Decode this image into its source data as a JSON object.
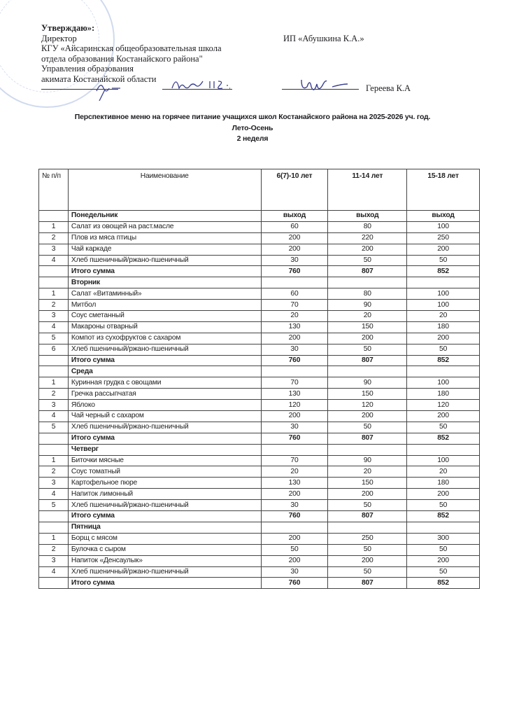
{
  "approval": {
    "heading": "Утверждаю»:",
    "lines": [
      "Директор",
      "КГУ  «Айсаринская общеобразовательная школа",
      "отдела образования Костанайского района\"",
      "Управления образования",
      "акимата Костанайской области"
    ]
  },
  "supplier": "ИП «Абушкина К.А.»",
  "signer_name": "Гереева К.А",
  "title": "Перспективное меню на горячее питание учащихся школ Костанайского района на 2025-2026  уч. год.",
  "season": "Лето-Осень",
  "week": "2 неделя",
  "table": {
    "headers": {
      "num": "№ п/п",
      "name": "Наименование",
      "age1": "6(7)-10 лет",
      "age2": "11-14 лет",
      "age3": "15-18 лет"
    },
    "yield_label": "выход",
    "total_label": "Итого сумма",
    "days": [
      {
        "name": "Понедельник",
        "items": [
          [
            "1",
            "Салат из овощей на раст.масле",
            "60",
            "80",
            "100"
          ],
          [
            "2",
            "Плов из мяса птицы",
            "200",
            "220",
            "250"
          ],
          [
            "3",
            "Чай каркаде",
            "200",
            "200",
            "200"
          ],
          [
            "4",
            "Хлеб  пшеничный/ржано-пшеничный",
            "30",
            "50",
            "50"
          ]
        ],
        "totals": [
          "760",
          "807",
          "852"
        ]
      },
      {
        "name": "Вторник",
        "items": [
          [
            "1",
            "Салат «Витаминный»",
            "60",
            "80",
            "100"
          ],
          [
            "2",
            "Митбол",
            "70",
            "90",
            "100"
          ],
          [
            "3",
            "Соус сметанный",
            "20",
            "20",
            "20"
          ],
          [
            "4",
            "Макароны отварный",
            "130",
            "150",
            "180"
          ],
          [
            "5",
            "Компот из сухофруктов с сахаром",
            "200",
            "200",
            "200"
          ],
          [
            "6",
            "Хлеб  пшеничный/ржано-пшеничный",
            "30",
            "50",
            "50"
          ]
        ],
        "totals": [
          "760",
          "807",
          "852"
        ]
      },
      {
        "name": "Среда",
        "items": [
          [
            "1",
            "Куринная грудка с овощами",
            "70",
            "90",
            "100"
          ],
          [
            "2",
            "Гречка рассыпчатая",
            "130",
            "150",
            "180"
          ],
          [
            "3",
            "Яблоко",
            "120",
            "120",
            "120"
          ],
          [
            "4",
            "Чай черный с сахаром",
            "200",
            "200",
            "200"
          ],
          [
            "5",
            "Хлеб  пшеничный/ржано-пшеничный",
            "30",
            "50",
            "50"
          ]
        ],
        "totals": [
          "760",
          "807",
          "852"
        ]
      },
      {
        "name": "Четверг",
        "items": [
          [
            "1",
            "Биточки мясные",
            "70",
            "90",
            "100"
          ],
          [
            "2",
            "Соус томатный",
            "20",
            "20",
            "20"
          ],
          [
            "3",
            "Картофельное пюре",
            "130",
            "150",
            "180"
          ],
          [
            "4",
            "Напиток лимонный",
            "200",
            "200",
            "200"
          ],
          [
            "5",
            "Хлеб  пшеничный/ржано-пшеничный",
            "30",
            "50",
            "50"
          ]
        ],
        "totals": [
          "760",
          "807",
          "852"
        ]
      },
      {
        "name": "Пятница",
        "items": [
          [
            "1",
            "Борщ с мясом",
            "200",
            "250",
            "300"
          ],
          [
            "2",
            "Булочка с сыром",
            "50",
            "50",
            "50"
          ],
          [
            "3",
            "Напиток «Денсаулык»",
            "200",
            "200",
            "200"
          ],
          [
            "4",
            "Хлеб  пшеничный/ржано-пшеничный",
            "30",
            "50",
            "50"
          ]
        ],
        "totals": [
          "760",
          "807",
          "852"
        ]
      }
    ]
  }
}
